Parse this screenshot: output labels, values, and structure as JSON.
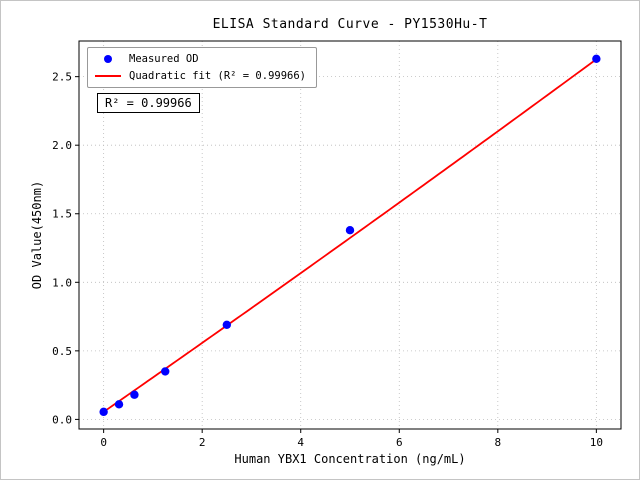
{
  "figure": {
    "title": "ELISA Standard Curve - PY1530Hu-T",
    "xlabel": "Human YBX1 Concentration (ng/mL)",
    "ylabel": "OD Value(450nm)",
    "annotation": "R² = 0.99966",
    "legend": {
      "measured_label": "Measured OD",
      "fit_label": "Quadratic fit (R² = 0.99966)"
    }
  },
  "chart_data": {
    "type": "scatter",
    "title": "ELISA Standard Curve - PY1530Hu-T",
    "xlabel": "Human YBX1 Concentration (ng/mL)",
    "ylabel": "OD Value(450nm)",
    "xlim": [
      -0.5,
      10.5
    ],
    "ylim": [
      -0.07,
      2.76
    ],
    "xticks": [
      0,
      2,
      4,
      6,
      8,
      10
    ],
    "yticks": [
      0,
      0.5,
      1,
      1.5,
      2,
      2.5
    ],
    "grid": true,
    "legend_position": "upper left",
    "annotation": {
      "text": "R² = 0.99966"
    },
    "series": [
      {
        "name": "Measured OD",
        "type": "scatter",
        "color": "#0000ff",
        "x": [
          0,
          0.3125,
          0.625,
          1.25,
          2.5,
          5,
          10
        ],
        "y": [
          0.055,
          0.11,
          0.18,
          0.35,
          0.69,
          1.38,
          2.63
        ]
      },
      {
        "name": "Quadratic fit",
        "type": "line",
        "color": "#ff0000",
        "r_squared": 0.99966,
        "fit_coeffs": {
          "a": 0.0007,
          "b": 0.2502,
          "c": 0.055
        },
        "x_range": [
          0,
          10
        ]
      }
    ],
    "colors": {
      "points": "#0000ff",
      "fit_line": "#ff0000",
      "grid": "#bbbbbb",
      "frame": "#000000"
    }
  }
}
